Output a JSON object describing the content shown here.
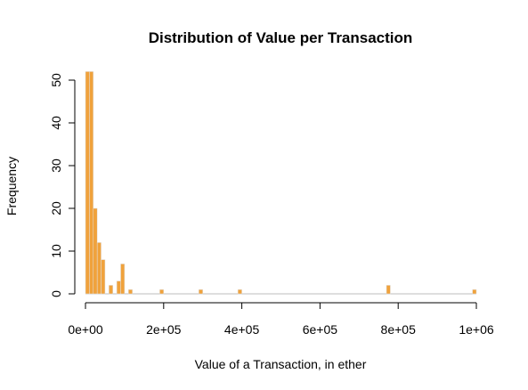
{
  "chart_data": {
    "type": "bar",
    "title": "Distribution of Value per Transaction",
    "xlabel": "Value of a Transaction, in ether",
    "ylabel": "Frequency",
    "xlim": [
      0,
      1000000
    ],
    "ylim": [
      0,
      52
    ],
    "bin_width": 10000,
    "bar_color": "#f0a23c",
    "grid": false,
    "x_ticks": [
      {
        "value": 0,
        "label": "0e+00"
      },
      {
        "value": 200000,
        "label": "2e+05"
      },
      {
        "value": 400000,
        "label": "4e+05"
      },
      {
        "value": 600000,
        "label": "6e+05"
      },
      {
        "value": 800000,
        "label": "8e+05"
      },
      {
        "value": 1000000,
        "label": "1e+06"
      }
    ],
    "y_ticks": [
      {
        "value": 0,
        "label": "0"
      },
      {
        "value": 10,
        "label": "10"
      },
      {
        "value": 20,
        "label": "20"
      },
      {
        "value": 30,
        "label": "30"
      },
      {
        "value": 40,
        "label": "40"
      },
      {
        "value": 50,
        "label": "50"
      }
    ],
    "bins": [
      {
        "x": 0,
        "count": 52
      },
      {
        "x": 10000,
        "count": 52
      },
      {
        "x": 20000,
        "count": 20
      },
      {
        "x": 30000,
        "count": 12
      },
      {
        "x": 40000,
        "count": 8
      },
      {
        "x": 60000,
        "count": 2
      },
      {
        "x": 80000,
        "count": 3
      },
      {
        "x": 90000,
        "count": 7
      },
      {
        "x": 110000,
        "count": 1
      },
      {
        "x": 190000,
        "count": 1
      },
      {
        "x": 290000,
        "count": 1
      },
      {
        "x": 390000,
        "count": 1
      },
      {
        "x": 770000,
        "count": 2
      },
      {
        "x": 990000,
        "count": 1
      }
    ]
  }
}
